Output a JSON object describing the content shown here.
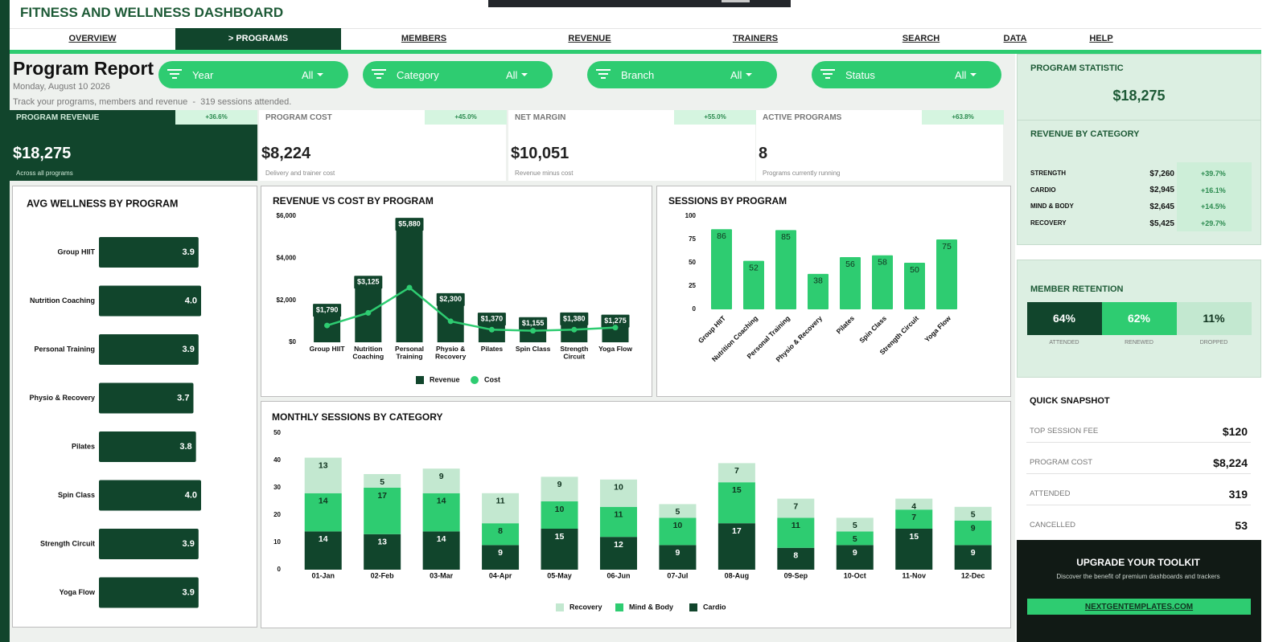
{
  "header": {
    "title": "FITNESS AND WELLNESS DASHBOARD"
  },
  "nav": {
    "items": [
      "OVERVIEW",
      "> PROGRAMS",
      "MEMBERS",
      "REVENUE",
      "TRAINERS",
      "SEARCH",
      "DATA",
      "HELP"
    ],
    "active": 1
  },
  "report": {
    "title": "Program Report",
    "date": "Monday, August 10 2026",
    "subtitle": "Track your programs, members and revenue  -  319 sessions attended."
  },
  "filters": [
    {
      "label": "Year",
      "value": "All"
    },
    {
      "label": "Category",
      "value": "All"
    },
    {
      "label": "Branch",
      "value": "All"
    },
    {
      "label": "Status",
      "value": "All"
    }
  ],
  "kpis": [
    {
      "title": "PROGRAM REVENUE",
      "change": "+36.6%",
      "value": "$18,275",
      "note": "Across all programs"
    },
    {
      "title": "PROGRAM COST",
      "change": "+45.0%",
      "value": "$8,224",
      "note": "Delivery and trainer cost"
    },
    {
      "title": "NET MARGIN",
      "change": "+55.0%",
      "value": "$10,051",
      "note": "Revenue minus cost"
    },
    {
      "title": "ACTIVE PROGRAMS",
      "change": "+63.8%",
      "value": "8",
      "note": "Programs currently running"
    }
  ],
  "charts": [
    {
      "type": "hbar",
      "title": "AVG WELLNESS BY PROGRAM",
      "categories": [
        "Group HIIT",
        "Nutrition Coaching",
        "Personal Training",
        "Physio & Recovery",
        "Pilates",
        "Spin Class",
        "Strength Circuit",
        "Yoga Flow"
      ],
      "values": [
        3.9,
        4.0,
        3.9,
        3.7,
        3.8,
        4.0,
        3.9,
        3.9
      ],
      "value_labels": [
        "3.9",
        "4.0",
        "3.9",
        "3.7",
        "3.8",
        "4.0",
        "3.9",
        "3.9"
      ],
      "color": "#11452c"
    },
    {
      "type": "bar_line",
      "title": "REVENUE VS COST BY PROGRAM",
      "categories": [
        "Group HIIT",
        "Nutrition Coaching",
        "Personal Training",
        "Physio & Recovery",
        "Pilates",
        "Spin Class",
        "Strength Circuit",
        "Yoga Flow"
      ],
      "series": [
        {
          "name": "Revenue",
          "type": "bar",
          "color": "#11452c",
          "values": [
            1790,
            3125,
            5880,
            2300,
            1370,
            1155,
            1380,
            1275
          ],
          "value_labels": [
            "$1,790",
            "$3,125",
            "$5,880",
            "$2,300",
            "$1,370",
            "$1,155",
            "$1,380",
            "$1,275"
          ]
        },
        {
          "name": "Cost",
          "type": "line",
          "color": "#2ecc71",
          "values": [
            800,
            1400,
            2600,
            1000,
            600,
            550,
            600,
            700
          ]
        }
      ],
      "ylim": [
        0,
        6000
      ],
      "yticks": [
        {
          "value": 0,
          "label": "$0"
        },
        {
          "value": 2000,
          "label": "$2,000"
        },
        {
          "value": 4000,
          "label": "$4,000"
        },
        {
          "value": 6000,
          "label": "$6,000"
        }
      ]
    },
    {
      "type": "bar",
      "title": "SESSIONS BY PROGRAM",
      "categories": [
        "Group HIIT",
        "Nutrition Coaching",
        "Personal Training",
        "Physio & Recovery",
        "Pilates",
        "Spin Class",
        "Strength Circuit",
        "Yoga Flow"
      ],
      "values": [
        86,
        52,
        85,
        38,
        56,
        58,
        50,
        75
      ],
      "color": "#2ecc71",
      "ylim": [
        0,
        100
      ],
      "yticks": [
        0,
        25,
        50,
        75,
        100
      ]
    },
    {
      "type": "stacked_bar",
      "title": "MONTHLY SESSIONS BY CATEGORY",
      "categories": [
        "01-Jan",
        "02-Feb",
        "03-Mar",
        "04-Apr",
        "05-May",
        "06-Jun",
        "07-Jul",
        "08-Aug",
        "09-Sep",
        "10-Oct",
        "11-Nov",
        "12-Dec"
      ],
      "series": [
        {
          "name": "Cardio",
          "color": "#11452c",
          "values": [
            14,
            13,
            14,
            9,
            15,
            12,
            9,
            17,
            8,
            9,
            15,
            9
          ]
        },
        {
          "name": "Mind & Body",
          "color": "#2ecc71",
          "values": [
            14,
            17,
            14,
            8,
            10,
            11,
            10,
            15,
            11,
            5,
            7,
            9
          ]
        },
        {
          "name": "Recovery",
          "color": "#c3e8d0",
          "values": [
            13,
            5,
            9,
            11,
            9,
            10,
            5,
            7,
            7,
            5,
            4,
            5
          ]
        }
      ],
      "ylim": [
        0,
        50
      ],
      "yticks": [
        0,
        10,
        20,
        30,
        40,
        50
      ]
    }
  ],
  "statistic": {
    "title": "PROGRAM STATISTIC",
    "value": "$18,275"
  },
  "revenue_by_category": {
    "title": "REVENUE BY CATEGORY",
    "rows": [
      {
        "name": "STRENGTH",
        "value": "$7,260",
        "change": "+39.7%"
      },
      {
        "name": "CARDIO",
        "value": "$2,945",
        "change": "+16.1%"
      },
      {
        "name": "MIND & BODY",
        "value": "$2,645",
        "change": "+14.5%"
      },
      {
        "name": "RECOVERY",
        "value": "$5,425",
        "change": "+29.7%"
      }
    ]
  },
  "retention": {
    "title": "MEMBER RETENTION",
    "items": [
      {
        "value": "64%",
        "label": "ATTENDED",
        "color": "#11452c"
      },
      {
        "value": "62%",
        "label": "RENEWED",
        "color": "#2ecc71"
      },
      {
        "value": "11%",
        "label": "DROPPED",
        "color": "#c3e8d0"
      }
    ]
  },
  "snapshot": {
    "title": "QUICK SNAPSHOT",
    "rows": [
      {
        "label": "TOP SESSION FEE",
        "value": "$120"
      },
      {
        "label": "PROGRAM COST",
        "value": "$8,224"
      },
      {
        "label": "ATTENDED",
        "value": "319"
      },
      {
        "label": "CANCELLED",
        "value": "53"
      }
    ]
  },
  "promo": {
    "title": "UPGRADE YOUR TOOLKIT",
    "text": "Discover the benefit of premium dashboards and trackers",
    "link": "NEXTGENTEMPLATES.COM"
  }
}
